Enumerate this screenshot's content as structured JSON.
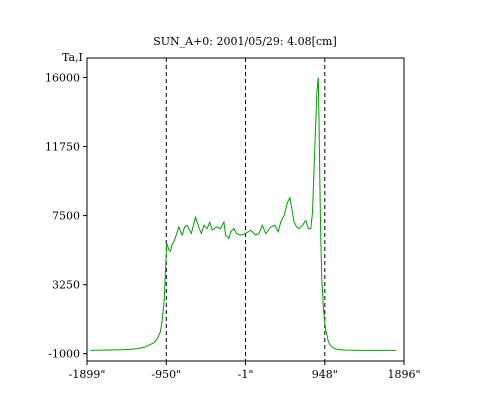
{
  "chart_data": {
    "type": "line",
    "title": "SUN_A+0: 2001/05/29: 4.08[cm]",
    "ylabel": "Ta,I",
    "xlabel": "",
    "xlim": [
      -1899,
      1896
    ],
    "ylim": [
      -1450,
      17200
    ],
    "grid": false,
    "x_ticks": [
      {
        "value": -1899,
        "label": "-1899\""
      },
      {
        "value": -950,
        "label": "-950\""
      },
      {
        "value": -1,
        "label": "-1\""
      },
      {
        "value": 948,
        "label": "948\""
      },
      {
        "value": 1896,
        "label": "1896\""
      }
    ],
    "y_ticks": [
      {
        "value": -1000,
        "label": "-1000"
      },
      {
        "value": 3250,
        "label": "3250"
      },
      {
        "value": 7500,
        "label": "7500"
      },
      {
        "value": 11750,
        "label": "11750"
      },
      {
        "value": 16000,
        "label": "16000"
      }
    ],
    "reference_lines_x": [
      -950,
      -1,
      948
    ],
    "series": [
      {
        "color": "#00a000",
        "x": [
          -1860,
          -1700,
          -1450,
          -1300,
          -1200,
          -1100,
          -1060,
          -1020,
          -1000,
          -975,
          -960,
          -945,
          -920,
          -900,
          -880,
          -850,
          -800,
          -760,
          -730,
          -700,
          -650,
          -600,
          -560,
          -530,
          -500,
          -460,
          -430,
          -400,
          -350,
          -300,
          -260,
          -240,
          -200,
          -180,
          -140,
          -110,
          -60,
          0,
          60,
          120,
          160,
          200,
          240,
          260,
          300,
          350,
          390,
          420,
          460,
          500,
          530,
          560,
          580,
          610,
          640,
          680,
          720,
          750,
          780,
          800,
          830,
          855,
          870,
          880,
          890,
          900,
          912,
          930,
          945,
          960,
          975,
          990,
          1010,
          1050,
          1100,
          1200,
          1400,
          1600,
          1800
        ],
        "y": [
          -800,
          -780,
          -750,
          -700,
          -580,
          -330,
          -100,
          350,
          1000,
          2300,
          4000,
          5800,
          5400,
          5300,
          5700,
          6000,
          6800,
          6300,
          6800,
          6900,
          6400,
          7400,
          6800,
          6400,
          6900,
          6700,
          7100,
          6600,
          6800,
          6700,
          7100,
          6300,
          6100,
          6500,
          6700,
          6400,
          6300,
          6400,
          6600,
          6300,
          6400,
          6900,
          6400,
          6500,
          6800,
          6900,
          6500,
          7100,
          7500,
          8300,
          8600,
          7700,
          7100,
          6800,
          6700,
          6900,
          7200,
          6700,
          6700,
          7700,
          12000,
          15200,
          16000,
          13000,
          9000,
          6000,
          3600,
          1900,
          1000,
          450,
          100,
          -250,
          -450,
          -650,
          -740,
          -780,
          -800,
          -800,
          -800
        ]
      }
    ]
  }
}
